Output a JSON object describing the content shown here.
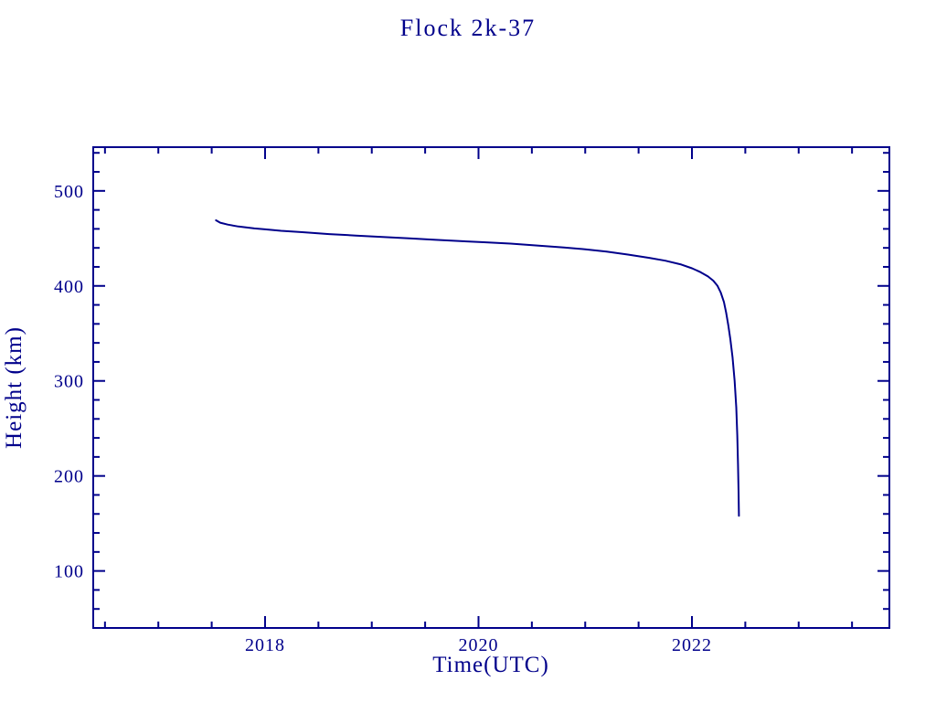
{
  "colors": {
    "ink": "#00008B",
    "background": "#ffffff"
  },
  "chart_data": {
    "type": "line",
    "title": "Flock 2k-37",
    "xlabel": "Time(UTC)",
    "ylabel": "Height (km)",
    "xlim": [
      2016.39,
      2023.85
    ],
    "ylim": [
      40,
      546
    ],
    "x_major_ticks": [
      2018,
      2020,
      2022
    ],
    "x_major_tick_labels": [
      "2018",
      "2020",
      "2022"
    ],
    "x_minor_step": 0.5,
    "y_major_ticks": [
      100,
      200,
      300,
      400,
      500
    ],
    "y_major_tick_labels": [
      "100",
      "200",
      "300",
      "400",
      "500"
    ],
    "y_minor_step": 20,
    "grid": false,
    "legend": null,
    "series": [
      {
        "name": "Flock 2k-37",
        "points": [
          [
            2017.54,
            469.0
          ],
          [
            2017.58,
            466.5
          ],
          [
            2017.65,
            464.5
          ],
          [
            2017.75,
            462.5
          ],
          [
            2017.9,
            460.5
          ],
          [
            2018.0,
            459.5
          ],
          [
            2018.15,
            458.0
          ],
          [
            2018.35,
            456.5
          ],
          [
            2018.6,
            454.5
          ],
          [
            2018.85,
            453.0
          ],
          [
            2019.1,
            451.5
          ],
          [
            2019.35,
            450.0
          ],
          [
            2019.6,
            448.5
          ],
          [
            2019.85,
            447.0
          ],
          [
            2020.05,
            446.0
          ],
          [
            2020.3,
            444.5
          ],
          [
            2020.55,
            442.5
          ],
          [
            2020.8,
            440.5
          ],
          [
            2021.0,
            438.5
          ],
          [
            2021.2,
            436.0
          ],
          [
            2021.4,
            433.0
          ],
          [
            2021.6,
            429.5
          ],
          [
            2021.75,
            426.5
          ],
          [
            2021.9,
            422.5
          ],
          [
            2022.0,
            418.5
          ],
          [
            2022.08,
            414.5
          ],
          [
            2022.15,
            410.0
          ],
          [
            2022.2,
            405.5
          ],
          [
            2022.24,
            400.0
          ],
          [
            2022.27,
            393.0
          ],
          [
            2022.3,
            383.0
          ],
          [
            2022.32,
            372.0
          ],
          [
            2022.34,
            359.0
          ],
          [
            2022.36,
            344.0
          ],
          [
            2022.38,
            325.0
          ],
          [
            2022.4,
            300.0
          ],
          [
            2022.415,
            272.0
          ],
          [
            2022.425,
            243.0
          ],
          [
            2022.432,
            212.0
          ],
          [
            2022.437,
            183.0
          ],
          [
            2022.44,
            158.0
          ]
        ]
      }
    ]
  }
}
